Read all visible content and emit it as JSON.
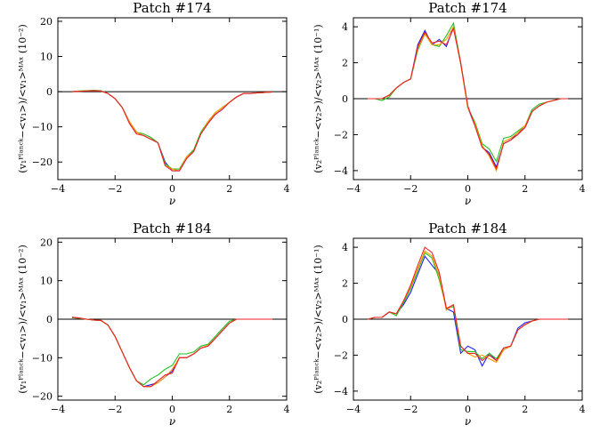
{
  "chart_data": [
    {
      "type": "line",
      "title": "Patch #174",
      "xlabel": "ν",
      "ylabel": "(v₁ᴾˡᵃⁿᶜᵏ−<v₁>)/<v₁>ᴹᴬˣ (10⁻²)",
      "xlim": [
        -4,
        4
      ],
      "ylim": [
        -25,
        21
      ],
      "xticks": [
        "−4",
        "−2",
        "0",
        "2",
        "4"
      ],
      "yticks": [
        "20",
        "10",
        "0",
        "−10",
        "−20"
      ],
      "x": [
        -3.5,
        -3.25,
        -3.0,
        -2.75,
        -2.5,
        -2.25,
        -2.0,
        -1.75,
        -1.5,
        -1.25,
        -1.0,
        -0.75,
        -0.5,
        -0.25,
        0.0,
        0.25,
        0.5,
        0.75,
        1.0,
        1.25,
        1.5,
        1.75,
        2.0,
        2.25,
        2.5,
        2.75,
        3.0,
        3.25,
        3.5
      ],
      "series": [
        {
          "name": "blue",
          "color": "#2020ff",
          "values": [
            0,
            0.1,
            0.2,
            0.3,
            0.2,
            -0.5,
            -2,
            -4.5,
            -8.5,
            -11.5,
            -12.5,
            -13.5,
            -14.5,
            -20,
            -22.5,
            -22.5,
            -19,
            -17,
            -12,
            -9,
            -6.5,
            -5,
            -3,
            -1.5,
            -0.5,
            -0.5,
            -0.3,
            -0.2,
            -0.1
          ]
        },
        {
          "name": "green",
          "color": "#20c020",
          "values": [
            0,
            0.2,
            0.3,
            0.4,
            0.3,
            -0.5,
            -2,
            -4.5,
            -8.5,
            -11.5,
            -12,
            -13,
            -14.5,
            -20.5,
            -22,
            -22,
            -18.5,
            -16.5,
            -11.5,
            -8.5,
            -6,
            -4.5,
            -3,
            -1.5,
            -0.5,
            -0.5,
            -0.3,
            -0.2,
            -0.1
          ]
        },
        {
          "name": "orange",
          "color": "#ff9a00",
          "values": [
            0,
            0.1,
            0.2,
            0.3,
            0.2,
            -0.5,
            -2,
            -4.5,
            -8.5,
            -11.5,
            -12.5,
            -13.5,
            -14.5,
            -21,
            -22,
            -22.5,
            -18.5,
            -17,
            -12,
            -8.5,
            -6,
            -4.5,
            -3,
            -1.5,
            -0.5,
            -0.5,
            -0.3,
            -0.2,
            -0.1
          ]
        },
        {
          "name": "red",
          "color": "#ee2222",
          "values": [
            0,
            0.1,
            0.2,
            0.3,
            0.2,
            -0.5,
            -2,
            -4.5,
            -9,
            -12,
            -12.5,
            -13.5,
            -14.5,
            -21,
            -22.5,
            -22.5,
            -19,
            -17,
            -12,
            -9,
            -6.5,
            -5,
            -3,
            -1.5,
            -0.5,
            -0.5,
            -0.3,
            -0.2,
            -0.1
          ]
        }
      ]
    },
    {
      "type": "line",
      "title": "Patch #174",
      "xlabel": "ν",
      "ylabel": "(v₂ᴾˡᵃⁿᶜᵏ−<v₂>)/<v₂>ᴹᴬˣ (10⁻¹)",
      "xlim": [
        -4,
        4
      ],
      "ylim": [
        -4.5,
        4.5
      ],
      "xticks": [
        "−4",
        "−2",
        "0",
        "2",
        "4"
      ],
      "yticks": [
        "4",
        "2",
        "0",
        "−2",
        "−4"
      ],
      "x": [
        -3.5,
        -3.25,
        -3.0,
        -2.75,
        -2.5,
        -2.25,
        -2.0,
        -1.75,
        -1.5,
        -1.25,
        -1.0,
        -0.75,
        -0.5,
        -0.25,
        0.0,
        0.25,
        0.5,
        0.75,
        1.0,
        1.25,
        1.5,
        1.75,
        2.0,
        2.25,
        2.5,
        2.75,
        3.0,
        3.25,
        3.5
      ],
      "series": [
        {
          "name": "blue",
          "color": "#2020ff",
          "values": [
            0,
            0,
            0,
            0.2,
            0.6,
            0.9,
            1.1,
            3.0,
            3.8,
            3.0,
            3.3,
            2.9,
            4.0,
            2.0,
            -0.5,
            -1.5,
            -2.7,
            -3.0,
            -3.8,
            -2.5,
            -2.3,
            -1.9,
            -1.6,
            -0.7,
            -0.4,
            -0.2,
            -0.1,
            0,
            0
          ]
        },
        {
          "name": "green",
          "color": "#20c020",
          "values": [
            0,
            0,
            -0.1,
            0.1,
            0.6,
            0.9,
            1.1,
            2.7,
            3.6,
            3.0,
            2.9,
            3.5,
            4.2,
            2.0,
            -0.5,
            -1.3,
            -2.5,
            -2.8,
            -3.5,
            -2.2,
            -2.1,
            -1.8,
            -1.5,
            -0.6,
            -0.3,
            -0.2,
            -0.1,
            0,
            0
          ]
        },
        {
          "name": "orange",
          "color": "#ff9a00",
          "values": [
            0,
            0,
            0,
            0.2,
            0.6,
            0.9,
            1.1,
            2.8,
            3.6,
            3.0,
            3.0,
            3.3,
            4.0,
            1.9,
            -0.5,
            -1.4,
            -2.6,
            -3.2,
            -4.0,
            -2.4,
            -2.2,
            -1.9,
            -1.5,
            -0.7,
            -0.4,
            -0.2,
            -0.1,
            0,
            0
          ]
        },
        {
          "name": "red",
          "color": "#ee2222",
          "values": [
            0,
            0,
            0,
            0.2,
            0.6,
            0.9,
            1.1,
            2.9,
            3.7,
            3.1,
            3.2,
            3.0,
            3.9,
            2.0,
            -0.4,
            -1.5,
            -2.7,
            -3.1,
            -3.9,
            -2.5,
            -2.3,
            -2.0,
            -1.6,
            -0.7,
            -0.4,
            -0.2,
            -0.1,
            0,
            0
          ]
        }
      ]
    },
    {
      "type": "line",
      "title": "Patch #184",
      "xlabel": "ν",
      "ylabel": "(v₁ᴾˡᵃⁿᶜᵏ−<v₁>)/<v₁>ᴹᴬˣ (10⁻²)",
      "xlim": [
        -4,
        4
      ],
      "ylim": [
        -21,
        21
      ],
      "xticks": [
        "−4",
        "−2",
        "0",
        "2",
        "4"
      ],
      "yticks": [
        "20",
        "10",
        "0",
        "−10",
        "−20"
      ],
      "x": [
        -3.5,
        -3.25,
        -3.0,
        -2.75,
        -2.5,
        -2.25,
        -2.0,
        -1.75,
        -1.5,
        -1.25,
        -1.0,
        -0.75,
        -0.5,
        -0.25,
        0.0,
        0.25,
        0.5,
        0.75,
        1.0,
        1.25,
        1.5,
        1.75,
        2.0,
        2.25,
        2.5,
        2.75,
        3.0,
        3.25,
        3.5
      ],
      "series": [
        {
          "name": "blue",
          "color": "#2020ff",
          "values": [
            0.5,
            0.3,
            0,
            -0.2,
            -0.3,
            -1.5,
            -4.5,
            -8.5,
            -12.5,
            -16,
            -17.5,
            -17,
            -16.5,
            -15,
            -13.5,
            -10,
            -10,
            -9,
            -7.5,
            -7,
            -5,
            -3,
            -1,
            0,
            0,
            0,
            0,
            0,
            0
          ]
        },
        {
          "name": "green",
          "color": "#20c020",
          "values": [
            0.4,
            0.2,
            0,
            -0.2,
            -0.3,
            -1.5,
            -4.5,
            -8.5,
            -12.5,
            -16,
            -17,
            -15.5,
            -14.5,
            -13,
            -12,
            -9,
            -9,
            -8.5,
            -7,
            -6.5,
            -4.5,
            -2.5,
            -0.5,
            0,
            0,
            0,
            0,
            0,
            0
          ]
        },
        {
          "name": "orange",
          "color": "#ff9a00",
          "values": [
            0.5,
            0.3,
            0,
            -0.2,
            -0.3,
            -1.5,
            -4.5,
            -8.5,
            -12.5,
            -16,
            -17.5,
            -17.5,
            -16.5,
            -15,
            -13,
            -10,
            -10,
            -9,
            -7.5,
            -6.8,
            -5,
            -3,
            -1,
            0,
            0,
            0,
            0,
            0,
            0
          ]
        },
        {
          "name": "red",
          "color": "#ee2222",
          "values": [
            0.5,
            0.3,
            0,
            -0.2,
            -0.3,
            -1.5,
            -4.5,
            -8.5,
            -12.5,
            -16,
            -17.5,
            -17.5,
            -16,
            -14.5,
            -14,
            -10,
            -10,
            -9,
            -7.5,
            -7,
            -5,
            -3,
            -1,
            0,
            0,
            0,
            0,
            0,
            0
          ]
        }
      ]
    },
    {
      "type": "line",
      "title": "Patch #184",
      "xlabel": "ν",
      "ylabel": "(v₂ᴾˡᵃⁿᶜᵏ−<v₂>)/<v₂>ᴹᴬˣ (10⁻¹)",
      "xlim": [
        -4,
        4
      ],
      "ylim": [
        -4.5,
        4.5
      ],
      "xticks": [
        "−4",
        "−2",
        "0",
        "2",
        "4"
      ],
      "yticks": [
        "4",
        "2",
        "0",
        "−2",
        "−4"
      ],
      "x": [
        -3.5,
        -3.25,
        -3.0,
        -2.75,
        -2.5,
        -2.25,
        -2.0,
        -1.75,
        -1.5,
        -1.25,
        -1.0,
        -0.75,
        -0.5,
        -0.25,
        0.0,
        0.25,
        0.5,
        0.75,
        1.0,
        1.25,
        1.5,
        1.75,
        2.0,
        2.25,
        2.5,
        2.75,
        3.0,
        3.25,
        3.5
      ],
      "series": [
        {
          "name": "blue",
          "color": "#2020ff",
          "values": [
            0,
            0.1,
            0.1,
            0.4,
            0.3,
            0.8,
            1.5,
            2.5,
            3.5,
            3.0,
            2.5,
            0.6,
            0.4,
            -1.9,
            -1.5,
            -1.7,
            -2.6,
            -1.9,
            -2.3,
            -1.7,
            -1.5,
            -0.5,
            -0.2,
            -0.1,
            0,
            0,
            0,
            0,
            0
          ]
        },
        {
          "name": "green",
          "color": "#20c020",
          "values": [
            0,
            0.1,
            0.1,
            0.4,
            0.2,
            0.9,
            1.7,
            2.7,
            3.7,
            3.4,
            2.2,
            0.6,
            0.7,
            -1.7,
            -1.8,
            -1.8,
            -2.2,
            -1.9,
            -2.2,
            -1.6,
            -1.5,
            -0.6,
            -0.3,
            -0.1,
            0,
            0,
            0,
            0,
            0
          ]
        },
        {
          "name": "orange",
          "color": "#ff9a00",
          "values": [
            0,
            0.1,
            0.1,
            0.4,
            0.3,
            1.0,
            1.8,
            2.8,
            3.8,
            3.5,
            2.4,
            0.5,
            0.8,
            -1.5,
            -1.9,
            -2.1,
            -2.0,
            -2.2,
            -2.4,
            -1.7,
            -1.5,
            -0.6,
            -0.3,
            -0.1,
            0,
            0,
            0,
            0,
            0
          ]
        },
        {
          "name": "red",
          "color": "#ee2222",
          "values": [
            0,
            0.1,
            0.1,
            0.4,
            0.3,
            1.0,
            1.9,
            3.0,
            4.0,
            3.7,
            2.6,
            0.6,
            0.8,
            -1.5,
            -1.9,
            -1.9,
            -2.3,
            -2.0,
            -2.3,
            -1.6,
            -1.5,
            -0.6,
            -0.3,
            -0.1,
            0,
            0,
            0,
            0,
            0
          ]
        }
      ]
    }
  ]
}
